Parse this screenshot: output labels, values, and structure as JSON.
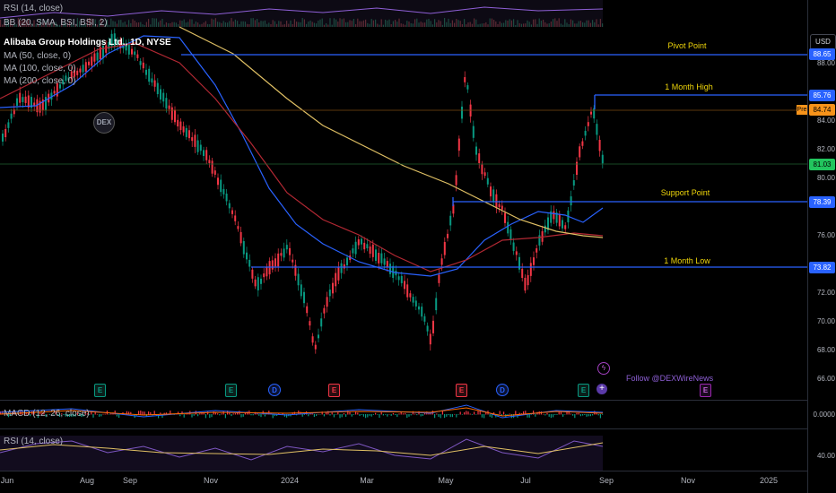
{
  "indicators": {
    "rsi_top": "RSI (14, close)",
    "bb": "BB (20, SMA, BSI, BSI, 2)",
    "symbol": "Alibaba Group Holdings Ltd., 1D, NYSE",
    "ma50": "MA (50, close, 0)",
    "ma100": "MA (100, close, 0)",
    "ma200": "MA (200, close, 0)",
    "macd": "MACD (12, 26, close)",
    "rsi_bottom": "RSI (14, close)"
  },
  "annotations": {
    "pivot": "Pivot Point",
    "month_high": "1 Month High",
    "support": "Support Point",
    "month_low": "1 Month Low",
    "follow": "Follow @DEXWireNews",
    "logo": "DEX",
    "pre": "Pre"
  },
  "price_axis": {
    "currency": "USD",
    "ticks": [
      "88.00",
      "86.00",
      "84.00",
      "82.00",
      "80.00",
      "78.00",
      "76.00",
      "74.00",
      "72.00",
      "70.00",
      "68.00",
      "66.00"
    ],
    "badges": {
      "pivot": "88.65",
      "month_high": "85.76",
      "pre": "84.74",
      "last": "81.03",
      "support": "78.39",
      "month_low": "73.82"
    },
    "macd_tick": "0.0000",
    "rsi_tick": "40.00"
  },
  "time_axis": [
    "Jun",
    "Aug",
    "Sep",
    "Nov",
    "2024",
    "Mar",
    "May",
    "Jul",
    "Sep",
    "Nov",
    "2025"
  ],
  "events": [
    "E",
    "E",
    "D",
    "E",
    "E",
    "D",
    "E",
    "E"
  ],
  "colors": {
    "level_line": "#2962ff",
    "annotation": "#f0d60a",
    "up": "#089981",
    "down": "#f23645",
    "ma50": "#2962ff",
    "ma100": "#b22833",
    "ma200": "#e0c064"
  }
}
